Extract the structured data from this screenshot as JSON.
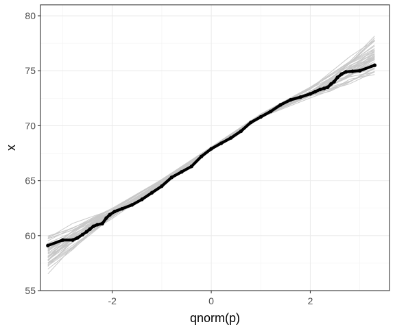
{
  "chart_data": {
    "type": "scatter",
    "xlabel": "qnorm(p)",
    "ylabel": "x",
    "xlim": [
      -3.45,
      3.6
    ],
    "ylim": [
      55,
      81
    ],
    "x_ticks": [
      -2,
      0,
      2
    ],
    "y_ticks": [
      55,
      60,
      65,
      70,
      75,
      80
    ],
    "x_tick_labels": [
      "-2",
      "0",
      "2"
    ],
    "y_tick_labels": [
      "55",
      "60",
      "65",
      "70",
      "75",
      "80"
    ],
    "grid": true,
    "theme": "bw",
    "envelope": {
      "description": "simulated reference lines",
      "count": 40,
      "color": "#c8c8c8",
      "x": [
        -3.3,
        -2.8,
        -2.4,
        -2.0,
        -1.0,
        0.0,
        1.0,
        2.0,
        2.4,
        2.8,
        3.3
      ],
      "center": [
        58.2,
        59.8,
        61.0,
        62.0,
        64.9,
        67.9,
        70.9,
        73.0,
        73.9,
        75.0,
        76.3
      ],
      "spread": [
        1.6,
        1.1,
        0.8,
        0.45,
        0.2,
        0.15,
        0.2,
        0.45,
        0.8,
        1.2,
        1.9
      ]
    },
    "series": [
      {
        "color": "#000000",
        "points": [
          [
            -3.3,
            59.1
          ],
          [
            -3.0,
            59.6
          ],
          [
            -2.8,
            59.6
          ],
          [
            -2.7,
            59.8
          ],
          [
            -2.6,
            60.1
          ],
          [
            -2.52,
            60.35
          ],
          [
            -2.45,
            60.6
          ],
          [
            -2.38,
            60.85
          ],
          [
            -2.3,
            61.0
          ],
          [
            -2.2,
            61.1
          ],
          [
            -2.12,
            61.6
          ],
          [
            -2.05,
            61.9
          ],
          [
            -1.95,
            62.2
          ],
          [
            -1.8,
            62.45
          ],
          [
            -1.6,
            62.8
          ],
          [
            -1.4,
            63.3
          ],
          [
            -1.2,
            63.9
          ],
          [
            -1.0,
            64.5
          ],
          [
            -0.8,
            65.3
          ],
          [
            -0.6,
            65.8
          ],
          [
            -0.4,
            66.3
          ],
          [
            -0.2,
            67.2
          ],
          [
            0.0,
            67.9
          ],
          [
            0.2,
            68.4
          ],
          [
            0.4,
            68.9
          ],
          [
            0.6,
            69.5
          ],
          [
            0.8,
            70.3
          ],
          [
            1.0,
            70.8
          ],
          [
            1.2,
            71.3
          ],
          [
            1.4,
            71.9
          ],
          [
            1.6,
            72.35
          ],
          [
            1.8,
            72.6
          ],
          [
            2.0,
            72.9
          ],
          [
            2.1,
            73.1
          ],
          [
            2.2,
            73.3
          ],
          [
            2.28,
            73.4
          ],
          [
            2.35,
            73.5
          ],
          [
            2.42,
            73.8
          ],
          [
            2.48,
            74.0
          ],
          [
            2.55,
            74.4
          ],
          [
            2.63,
            74.7
          ],
          [
            2.72,
            74.9
          ],
          [
            2.85,
            74.95
          ],
          [
            3.0,
            75.0
          ],
          [
            3.3,
            75.5
          ]
        ]
      }
    ]
  }
}
